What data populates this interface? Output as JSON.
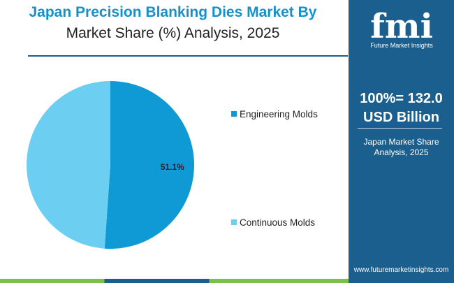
{
  "title": {
    "line1": "Japan Precision Blanking Dies Market By",
    "line2": "Market Share (%) Analysis, 2025"
  },
  "sidebar": {
    "logo_letters": "fmi",
    "logo_text": "Future Market Insights",
    "total_line1": "100%= 132.0",
    "total_line2": "USD Billion",
    "caption_line1": "Japan Market Share",
    "caption_line2": "Analysis, 2025",
    "url": "www.futuremarketinsights.com"
  },
  "colors": {
    "title_blue": "#1790c8",
    "sidebar_navy": "#1a5f8e",
    "accent_green": "#7cc04b"
  },
  "chart_data": {
    "type": "pie",
    "labels": [
      "Engineering Molds",
      "Continuous Molds"
    ],
    "values": [
      51.1,
      48.9
    ],
    "colors": [
      "#0f9ad6",
      "#6ccff2"
    ],
    "data_labels": [
      "51.1%",
      ""
    ],
    "legend_position": "right"
  }
}
